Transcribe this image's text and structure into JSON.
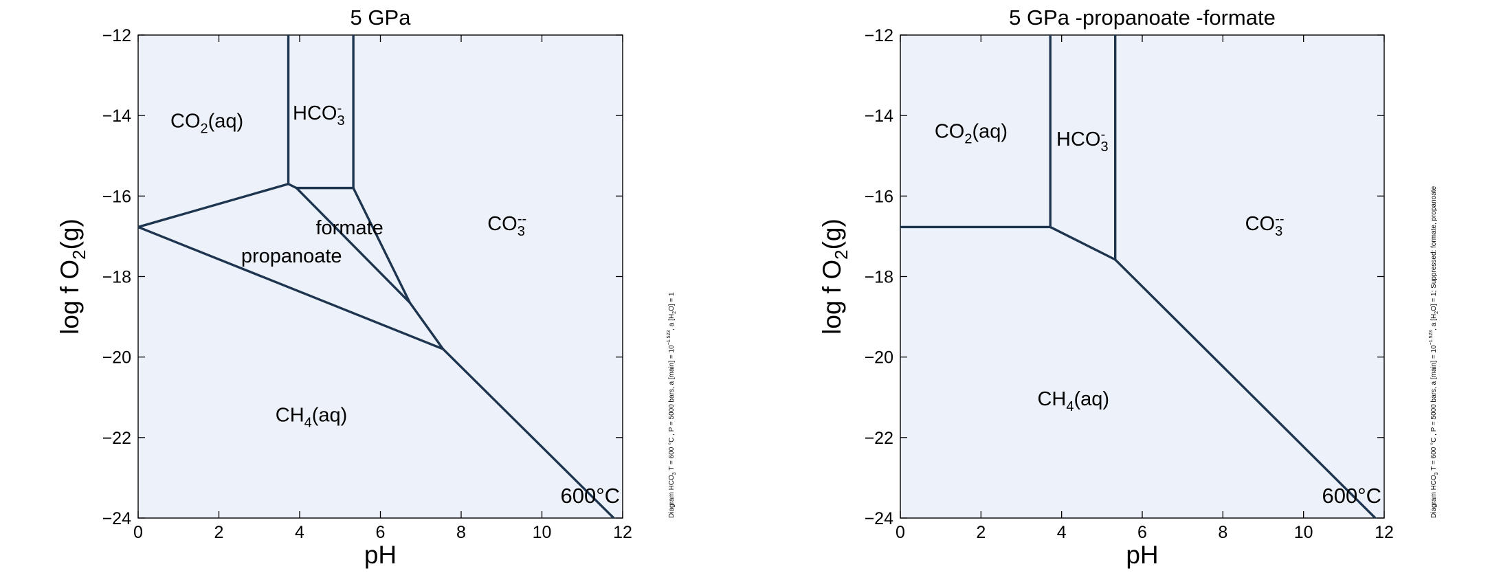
{
  "chart_data": [
    {
      "type": "line",
      "title": "5 GPa",
      "xlabel": "pH",
      "ylabel": "log f O2(g)",
      "xlim": [
        0,
        12
      ],
      "ylim": [
        -24,
        -12
      ],
      "xticks": [
        0,
        2,
        4,
        6,
        8,
        10,
        12
      ],
      "yticks": [
        -24,
        -22,
        -20,
        -18,
        -16,
        -14,
        -12
      ],
      "xtick_labels": [
        "0",
        "2",
        "4",
        "6",
        "8",
        "10",
        "12"
      ],
      "ytick_labels": [
        "−24",
        "−22",
        "−20",
        "−18",
        "−16",
        "−14",
        "−12"
      ],
      "grid": false,
      "boundaries": [
        {
          "x": [
            0,
            3.72
          ],
          "y": [
            -16.77,
            -15.7
          ]
        },
        {
          "x": [
            3.72,
            3.72
          ],
          "y": [
            -15.7,
            -12
          ]
        },
        {
          "x": [
            5.33,
            5.33
          ],
          "y": [
            -15.8,
            -12
          ]
        },
        {
          "x": [
            3.72,
            3.92
          ],
          "y": [
            -15.7,
            -15.8
          ]
        },
        {
          "x": [
            3.92,
            5.33
          ],
          "y": [
            -15.8,
            -15.8
          ]
        },
        {
          "x": [
            3.92,
            6.73
          ],
          "y": [
            -15.8,
            -18.65
          ]
        },
        {
          "x": [
            5.33,
            6.73
          ],
          "y": [
            -15.8,
            -18.65
          ]
        },
        {
          "x": [
            6.73,
            7.55
          ],
          "y": [
            -18.65,
            -19.8
          ]
        },
        {
          "x": [
            0,
            7.55
          ],
          "y": [
            -16.77,
            -19.8
          ]
        },
        {
          "x": [
            7.55,
            11.78
          ],
          "y": [
            -19.8,
            -24
          ]
        }
      ],
      "regions": [
        {
          "label": "CO",
          "sub": "2",
          "sup": "",
          "suffix": "(aq)",
          "x": 0.8,
          "y": -14.3
        },
        {
          "label": "HCO",
          "sub": "3",
          "sup": "-",
          "suffix": "",
          "x": 3.83,
          "y": -14.1
        },
        {
          "label": "formate",
          "sub": "",
          "sup": "",
          "suffix": "",
          "x": 4.4,
          "y": -16.95
        },
        {
          "label": "propanoate",
          "sub": "",
          "sup": "",
          "suffix": "",
          "x": 2.55,
          "y": -17.65
        },
        {
          "label": "CO",
          "sub": "3",
          "sup": "--",
          "suffix": "",
          "x": 8.65,
          "y": -16.85
        },
        {
          "label": "CH",
          "sub": "4",
          "sup": "",
          "suffix": "(aq)",
          "x": 3.4,
          "y": -21.6
        }
      ],
      "temperature_label": "600°C",
      "side_note": {
        "prefix": "Diagram HCO",
        "sub1": "3",
        "mid": "  T =  600 °C ,  P  =  5000 bars, a [main] =  10",
        "sup": "−1.523",
        "mid2": ", a [H",
        "sub2": "2",
        "suffix": "O]  =  1"
      }
    },
    {
      "type": "line",
      "title": "5 GPa -propanoate -formate",
      "xlabel": "pH",
      "ylabel": "log f O2(g)",
      "xlim": [
        0,
        12
      ],
      "ylim": [
        -24,
        -12
      ],
      "xticks": [
        0,
        2,
        4,
        6,
        8,
        10,
        12
      ],
      "yticks": [
        -24,
        -22,
        -20,
        -18,
        -16,
        -14,
        -12
      ],
      "xtick_labels": [
        "0",
        "2",
        "4",
        "6",
        "8",
        "10",
        "12"
      ],
      "ytick_labels": [
        "−24",
        "−22",
        "−20",
        "−18",
        "−16",
        "−14",
        "−12"
      ],
      "grid": false,
      "boundaries": [
        {
          "x": [
            0,
            3.72
          ],
          "y": [
            -16.77,
            -16.77
          ]
        },
        {
          "x": [
            3.72,
            3.72
          ],
          "y": [
            -16.77,
            -12
          ]
        },
        {
          "x": [
            5.33,
            5.33
          ],
          "y": [
            -17.58,
            -12
          ]
        },
        {
          "x": [
            3.72,
            5.33
          ],
          "y": [
            -16.77,
            -17.58
          ]
        },
        {
          "x": [
            5.33,
            11.78
          ],
          "y": [
            -17.58,
            -24
          ]
        }
      ],
      "regions": [
        {
          "label": "CO",
          "sub": "2",
          "sup": "",
          "suffix": "(aq)",
          "x": 0.85,
          "y": -14.55
        },
        {
          "label": "HCO",
          "sub": "3",
          "sup": "-",
          "suffix": "",
          "x": 3.87,
          "y": -14.75
        },
        {
          "label": "CO",
          "sub": "3",
          "sup": "--",
          "suffix": "",
          "x": 8.55,
          "y": -16.85
        },
        {
          "label": "CH",
          "sub": "4",
          "sup": "",
          "suffix": "(aq)",
          "x": 3.4,
          "y": -21.2
        }
      ],
      "temperature_label": "600°C",
      "side_note": {
        "prefix": "Diagram HCO",
        "sub1": "3",
        "mid": "  T =  600 °C ,  P  =  5000 bars, a [main] =  10",
        "sup": "−1.523",
        "mid2": ", a [H",
        "sub2": "2",
        "suffix": "O]  =  1; Suppressed: formate, propanoate"
      }
    }
  ]
}
